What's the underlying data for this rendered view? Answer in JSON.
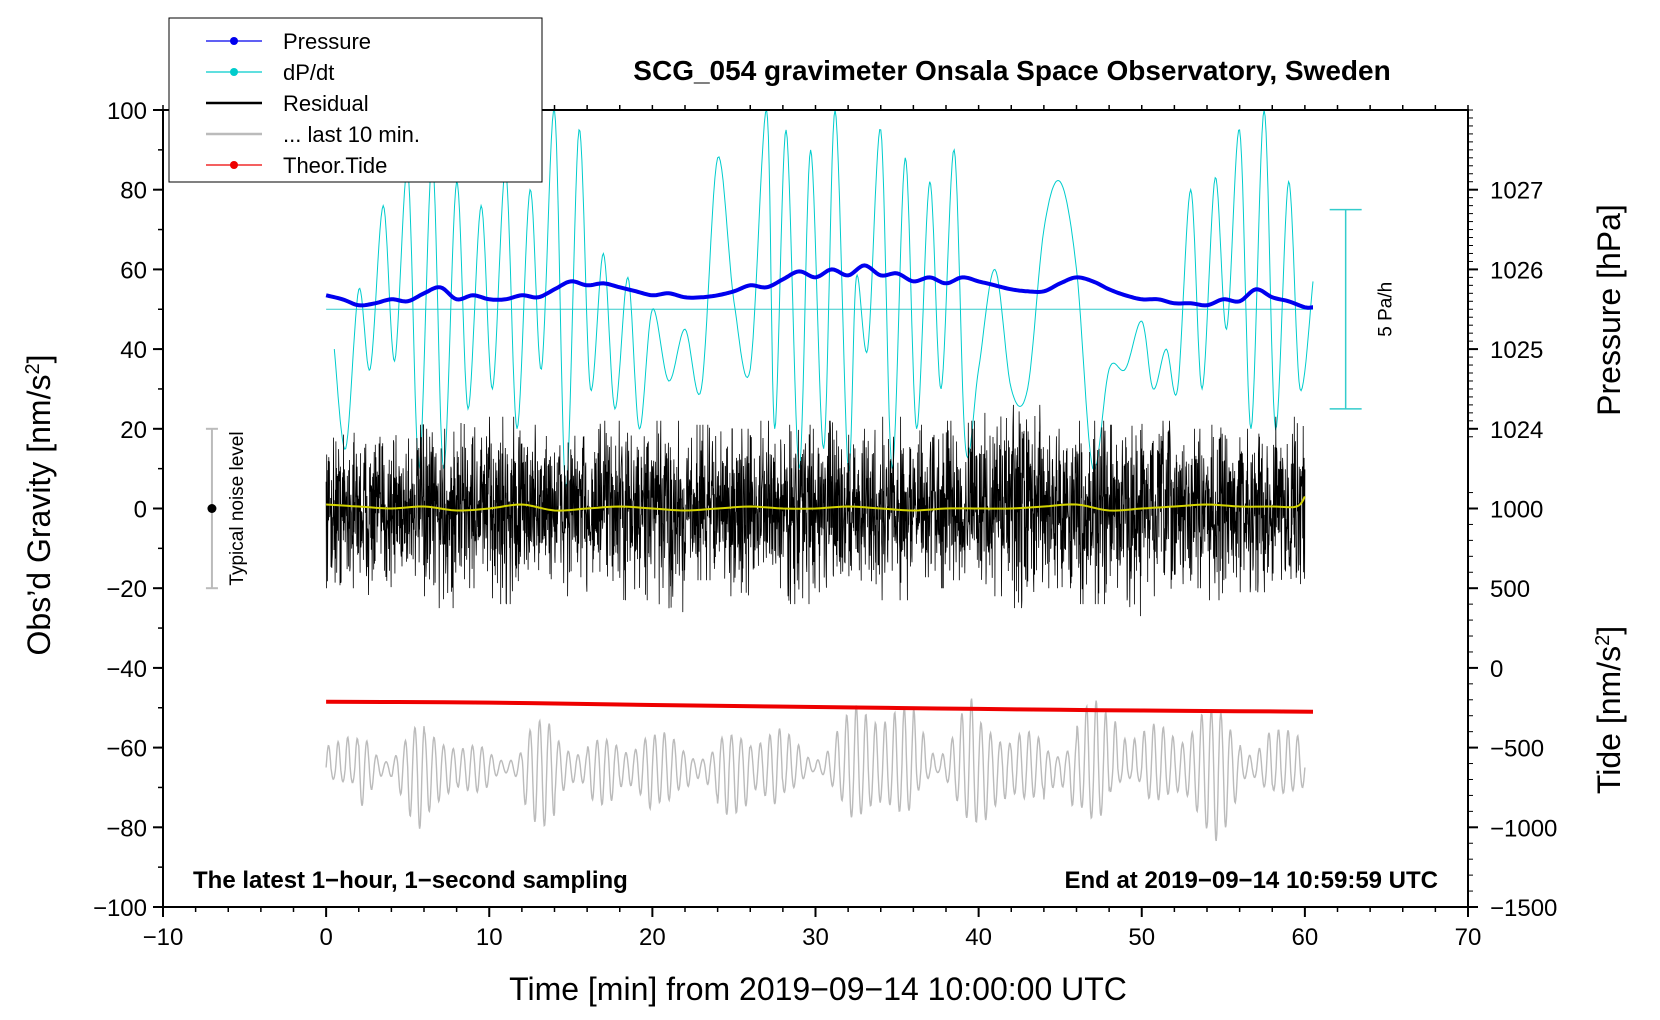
{
  "chart_data": {
    "type": "line",
    "title": "SCG_054 gravimeter Onsala Space Observatory, Sweden",
    "xlabel": "Time [min] from 2019−09−14 10:00:00 UTC",
    "ylabel_left": "Obs’d Gravity [nm/s",
    "ylabel_left_sup": "2",
    "ylabel_left_end": "]",
    "ylabel_right_top": "Pressure [hPa]",
    "ylabel_right_bottom": "Tide [nm/s",
    "ylabel_right_bottom_sup": "2",
    "ylabel_right_bottom_end": "]",
    "xlim": [
      -10,
      70
    ],
    "ylim": [
      -100,
      100
    ],
    "x_ticks": [
      "−10",
      "0",
      "10",
      "20",
      "30",
      "40",
      "50",
      "60",
      "70"
    ],
    "x_tick_values": [
      -10,
      0,
      10,
      20,
      30,
      40,
      50,
      60,
      70
    ],
    "y_ticks": [
      "100",
      "80",
      "60",
      "40",
      "20",
      "0",
      "−20",
      "−40",
      "−60",
      "−80",
      "−100"
    ],
    "y_tick_values": [
      100,
      80,
      60,
      40,
      20,
      0,
      -20,
      -40,
      -60,
      -80,
      -100
    ],
    "pressure_axis": {
      "ticks": [
        "1027",
        "1026",
        "1025",
        "1024"
      ],
      "values": [
        1027,
        1026,
        1025,
        1024
      ],
      "ref_left_value": 80,
      "hpa_per_gravity_unit": 0.05
    },
    "tide_axis": {
      "ticks": [
        "1000",
        "500",
        "0",
        "−500",
        "−1000",
        "−1500"
      ],
      "values": [
        1000,
        500,
        0,
        -500,
        -1000,
        -1500
      ],
      "ref_left_value": -100,
      "ref_tide_value": -1500,
      "nms2_per_gravity_unit": 25
    },
    "legend": [
      {
        "label": "Pressure",
        "color": "#0000ee",
        "marker": true
      },
      {
        "label": "dP/dt",
        "color": "#00cccc",
        "marker": true
      },
      {
        "label": "Residual",
        "color": "#000000",
        "marker": false
      },
      {
        "label": "... last 10 min.",
        "color": "#bbbbbb",
        "marker": false
      },
      {
        "label": "Theor.Tide",
        "color": "#ee0000",
        "marker": true
      }
    ],
    "annotations": {
      "bottom_left": "The latest 1−hour, 1−second sampling",
      "bottom_right": "End at 2019−09−14 10:59:59 UTC",
      "noise_label": "Typical noise level",
      "rate_label": "5 Pa/h"
    },
    "noise_bar": {
      "x": -7,
      "y_center": 0,
      "y_half_range": 20
    },
    "rate_bar": {
      "x": 62.5,
      "y_low": 25,
      "y_high": 75
    },
    "dpdt_baseline": 50,
    "series": [
      {
        "name": "Pressure",
        "color": "#0000ee",
        "x": [
          0,
          1,
          2,
          3,
          4,
          5,
          6,
          7,
          8,
          9,
          10,
          11,
          12,
          13,
          14,
          15,
          16,
          17,
          18,
          19,
          20,
          21,
          22,
          23,
          24,
          25,
          26,
          27,
          28,
          29,
          30,
          31,
          32,
          33,
          34,
          35,
          36,
          37,
          38,
          39,
          40,
          41,
          42,
          43,
          44,
          45,
          46,
          47,
          48,
          49,
          50,
          51,
          52,
          53,
          54,
          55,
          56,
          57,
          58,
          59,
          60,
          60.5
        ],
        "y": [
          53.5,
          52.5,
          51,
          51.5,
          52.5,
          52,
          54,
          55.5,
          52.5,
          53.5,
          52.5,
          52.5,
          53.5,
          53,
          55,
          57,
          56,
          56.5,
          55.5,
          54.5,
          53.5,
          54,
          53,
          53,
          53.5,
          54.5,
          56,
          55.5,
          57.5,
          59.5,
          58,
          60,
          58.5,
          61,
          58.5,
          59,
          57,
          58,
          56.5,
          58,
          57,
          56,
          55,
          54.5,
          54.5,
          56.5,
          58,
          57,
          55,
          53.5,
          52.5,
          52.5,
          51.5,
          51.5,
          51,
          52.5,
          52,
          55,
          53,
          52,
          50.5,
          50.5
        ]
      },
      {
        "name": "dP/dt",
        "color": "#00cccc",
        "x": [
          0.5,
          1.2,
          2,
          2.7,
          3.5,
          4.2,
          5,
          5.7,
          6.5,
          7.2,
          8,
          8.7,
          9.5,
          10.2,
          11,
          11.7,
          12.5,
          13.2,
          14,
          14.7,
          15.5,
          16.2,
          17,
          17.7,
          18.5,
          19.2,
          20,
          21,
          22,
          23,
          24,
          25,
          26,
          27,
          27.5,
          28.2,
          29,
          29.7,
          30.5,
          31.2,
          32,
          32.5,
          33.2,
          34,
          34.7,
          35.5,
          36.2,
          37,
          37.7,
          38.5,
          39.2,
          40,
          41,
          42,
          43,
          44,
          45,
          46,
          47,
          48,
          49,
          50,
          50.7,
          51.5,
          52.2,
          53,
          53.7,
          54.5,
          55.2,
          56,
          56.7,
          57.5,
          58.2,
          59,
          59.7,
          60.5
        ],
        "y": [
          40,
          15,
          55,
          35,
          76,
          37,
          85,
          10,
          88,
          10,
          82,
          25,
          76,
          30,
          85,
          20,
          80,
          35,
          100,
          5,
          95,
          30,
          64,
          25,
          58,
          20,
          50,
          32,
          45,
          30,
          88,
          52,
          35,
          100,
          20,
          95,
          10,
          90,
          15,
          100,
          10,
          58,
          40,
          95,
          10,
          88,
          20,
          82,
          30,
          90,
          15,
          35,
          60,
          30,
          30,
          70,
          82,
          60,
          10,
          35,
          35,
          47,
          30,
          40,
          30,
          80,
          30,
          83,
          45,
          95,
          20,
          100,
          20,
          82,
          30,
          57
        ]
      },
      {
        "name": "Residual",
        "color": "#000000",
        "x": [
          0,
          60
        ],
        "y_min": [
          -20,
          -22,
          -18,
          -25,
          -20,
          -24,
          -18,
          -22,
          -20,
          -23,
          -26,
          -18,
          -22,
          -20,
          -24,
          -21,
          -19,
          -23,
          -20,
          -18,
          -22,
          -25,
          -20,
          -24,
          -27,
          -22,
          -20,
          -23,
          -21,
          -19,
          -20
        ],
        "y_max": [
          19,
          18,
          21,
          20,
          22,
          23,
          21,
          20,
          22,
          19,
          22,
          21,
          20,
          22,
          21,
          22,
          20,
          23,
          21,
          22,
          24,
          26,
          20,
          22,
          21,
          22,
          20,
          21,
          20,
          23,
          18
        ]
      },
      {
        "name": "Residual smoothed",
        "color": "#d4d400",
        "x": [
          0,
          2,
          4,
          6,
          8,
          10,
          12,
          14,
          16,
          18,
          20,
          22,
          24,
          26,
          28,
          30,
          32,
          34,
          36,
          38,
          40,
          42,
          44,
          46,
          48,
          50,
          52,
          54,
          56,
          58,
          59.5,
          60
        ],
        "y": [
          1,
          0.5,
          0,
          0.5,
          -0.5,
          0,
          1,
          -0.5,
          0,
          0.5,
          0,
          -0.5,
          0,
          0.5,
          0,
          0,
          0.5,
          0,
          -0.5,
          0,
          0,
          0,
          0.5,
          1,
          -0.5,
          0,
          0.5,
          1,
          0.5,
          0.5,
          0.5,
          3
        ]
      },
      {
        "name": "... last 10 min.",
        "color": "#bbbbbb",
        "x": [
          0,
          60
        ],
        "base": -65,
        "y_min": [
          -70,
          -80,
          -82,
          -78,
          -75,
          -72,
          -80,
          -76,
          -82,
          -78,
          -74,
          -80,
          -84,
          -76,
          -72,
          -78,
          -81,
          -80,
          -76,
          -80,
          -82,
          -78,
          -86,
          -78,
          -74,
          -80,
          -82,
          -84,
          -78,
          -75,
          -72
        ],
        "y_max": [
          -55,
          -52,
          -53,
          -55,
          -56,
          -57,
          -53,
          -55,
          -52,
          -54,
          -56,
          -55,
          -52,
          -54,
          -55,
          -47,
          -45,
          -45,
          -42,
          -46,
          -52,
          -50,
          -52,
          -48,
          -43,
          -45,
          -48,
          -50,
          -47,
          -50,
          -58
        ]
      },
      {
        "name": "Theor.Tide",
        "color": "#ee0000",
        "x": [
          0,
          10,
          20,
          30,
          40,
          50,
          60.5
        ],
        "y": [
          -48.5,
          -48.7,
          -49.3,
          -49.8,
          -50.3,
          -50.7,
          -51
        ]
      }
    ]
  }
}
